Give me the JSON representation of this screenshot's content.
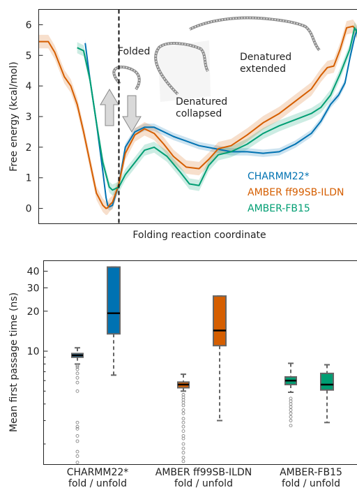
{
  "colors": {
    "charmm": "#0072b2",
    "amber": "#d55e00",
    "fb15": "#009e73",
    "box_edge": "#666666"
  },
  "chart_data": [
    {
      "type": "line",
      "xlabel": "Folding reaction coordinate",
      "ylabel": "Free energy (kcal/mol)",
      "ylim": [
        -0.5,
        6.5
      ],
      "yticks": [
        0,
        1,
        2,
        3,
        4,
        5,
        6
      ],
      "xlim": [
        0,
        1
      ],
      "grid": false,
      "legend_position": "bottom-right",
      "folded_marker_x": 0.25,
      "annotations": {
        "folded": "Folded",
        "collapsed_1": "Denatured",
        "collapsed_2": "collapsed",
        "extended_1": "Denatured",
        "extended_2": "extended"
      },
      "series": [
        {
          "name": "CHARMM22*",
          "band": 0.12,
          "x": [
            0.145,
            0.16,
            0.18,
            0.2,
            0.21,
            0.215,
            0.22,
            0.23,
            0.25,
            0.27,
            0.3,
            0.33,
            0.36,
            0.39,
            0.42,
            0.46,
            0.5,
            0.55,
            0.6,
            0.65,
            0.7,
            0.75,
            0.8,
            0.85,
            0.88,
            0.91,
            0.935,
            0.955,
            0.97,
            0.985,
            0.995,
            1.0
          ],
          "y": [
            5.4,
            4.2,
            2.8,
            1.2,
            0.35,
            0.1,
            0.05,
            0.1,
            0.8,
            2.0,
            2.5,
            2.65,
            2.65,
            2.5,
            2.35,
            2.2,
            2.05,
            1.95,
            1.85,
            1.85,
            1.8,
            1.85,
            2.1,
            2.45,
            2.85,
            3.4,
            3.7,
            4.1,
            4.9,
            5.6,
            5.9,
            5.75
          ]
        },
        {
          "name": "AMBER ff99SB-ILDN",
          "band": 0.22,
          "x": [
            0.0,
            0.03,
            0.05,
            0.08,
            0.1,
            0.12,
            0.14,
            0.16,
            0.18,
            0.2,
            0.21,
            0.215,
            0.22,
            0.23,
            0.25,
            0.27,
            0.3,
            0.33,
            0.36,
            0.39,
            0.42,
            0.46,
            0.5,
            0.53,
            0.56,
            0.6,
            0.65,
            0.7,
            0.75,
            0.8,
            0.85,
            0.88,
            0.9,
            0.92,
            0.94,
            0.96,
            0.98,
            1.0
          ],
          "y": [
            5.45,
            5.45,
            5.1,
            4.3,
            4.0,
            3.4,
            2.5,
            1.5,
            0.5,
            0.1,
            0.0,
            0.02,
            0.1,
            0.2,
            0.8,
            1.8,
            2.4,
            2.6,
            2.45,
            2.1,
            1.7,
            1.35,
            1.3,
            1.6,
            1.95,
            2.05,
            2.4,
            2.8,
            3.1,
            3.5,
            3.9,
            4.35,
            4.6,
            4.65,
            5.2,
            5.9,
            5.95,
            5.65
          ]
        },
        {
          "name": "AMBER-FB15",
          "band": 0.18,
          "x": [
            0.12,
            0.14,
            0.16,
            0.18,
            0.2,
            0.22,
            0.23,
            0.25,
            0.27,
            0.3,
            0.33,
            0.36,
            0.4,
            0.44,
            0.47,
            0.5,
            0.53,
            0.56,
            0.6,
            0.65,
            0.7,
            0.75,
            0.8,
            0.85,
            0.88,
            0.91,
            0.94,
            0.97,
            0.985,
            1.0
          ],
          "y": [
            5.25,
            5.15,
            4.2,
            2.8,
            1.5,
            0.7,
            0.6,
            0.7,
            1.1,
            1.5,
            1.9,
            2.0,
            1.7,
            1.2,
            0.8,
            0.75,
            1.4,
            1.75,
            1.85,
            2.1,
            2.45,
            2.7,
            2.9,
            3.1,
            3.3,
            3.7,
            4.4,
            5.2,
            5.9,
            5.6
          ]
        }
      ]
    },
    {
      "type": "box",
      "ylabel": "Mean first passage time (ns)",
      "yscale": "log",
      "ylim": [
        1.4,
        48
      ],
      "yticks": [
        10,
        20,
        30,
        40
      ],
      "ytick_labels": [
        "10",
        "20",
        "30",
        "40"
      ],
      "category_labels": [
        [
          "CHARMM22*",
          "fold / unfold"
        ],
        [
          "AMBER ff99SB-ILDN",
          "fold / unfold"
        ],
        [
          "AMBER-FB15",
          "fold / unfold"
        ]
      ],
      "boxes": [
        {
          "group": 0,
          "kind": "fold",
          "series": "CHARMM22*",
          "whisker_low": 8.0,
          "q1": 9.0,
          "median": 9.3,
          "q3": 9.6,
          "whisker_high": 10.6,
          "outliers": [
            7.8,
            7.6,
            7.3,
            6.8,
            6.3,
            5.8,
            5.0,
            2.9,
            2.7,
            2.6,
            2.3,
            2.1,
            1.75,
            1.62,
            1.45
          ]
        },
        {
          "group": 0,
          "kind": "unfold",
          "series": "CHARMM22*",
          "whisker_low": 6.6,
          "q1": 13.5,
          "median": 19.3,
          "q3": 43.0,
          "whisker_high": 43.0,
          "outliers": []
        },
        {
          "group": 1,
          "kind": "fold",
          "series": "AMBER ff99SB-ILDN",
          "whisker_low": 5.0,
          "q1": 5.3,
          "median": 5.6,
          "q3": 5.85,
          "whisker_high": 6.7,
          "outliers": [
            4.7,
            4.5,
            4.3,
            4.1,
            3.9,
            3.6,
            3.4,
            3.1,
            2.9,
            2.7,
            2.5,
            2.3,
            2.2,
            2.0,
            1.85,
            1.72,
            1.58,
            1.48
          ]
        },
        {
          "group": 1,
          "kind": "unfold",
          "series": "AMBER ff99SB-ILDN",
          "whisker_low": 3.0,
          "q1": 11.0,
          "median": 14.3,
          "q3": 26.0,
          "whisker_high": 26.0,
          "outliers": []
        },
        {
          "group": 2,
          "kind": "fold",
          "series": "AMBER-FB15",
          "whisker_low": 4.9,
          "q1": 5.6,
          "median": 6.0,
          "q3": 6.4,
          "whisker_high": 8.1,
          "outliers": [
            4.4,
            4.2,
            4.0,
            3.8,
            3.6,
            3.4,
            3.2,
            3.0,
            2.75
          ]
        },
        {
          "group": 2,
          "kind": "unfold",
          "series": "AMBER-FB15",
          "whisker_low": 2.9,
          "q1": 5.1,
          "median": 5.6,
          "q3": 6.8,
          "whisker_high": 7.9,
          "outliers": []
        }
      ]
    }
  ]
}
